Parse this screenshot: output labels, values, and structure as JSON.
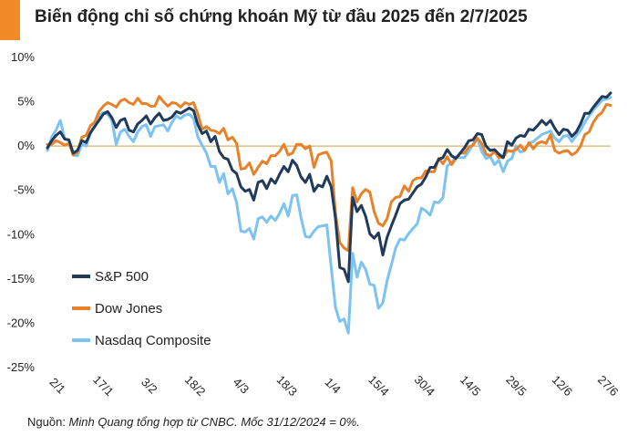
{
  "title": "Biến động chỉ số chứng khoán Mỹ từ đầu 2025 đến 2/7/2025",
  "source_prefix": "Nguồn: ",
  "source_text": "Minh Quang tổng hợp từ CNBC. Mốc 31/12/2024 = 0%.",
  "colors": {
    "accent": "#f08a24",
    "sp500": "#1f3a5a",
    "dow": "#e8822a",
    "nasdaq": "#7cc3f2"
  },
  "chart_data": {
    "type": "line",
    "title": "Biến động chỉ số chứng khoán Mỹ từ đầu 2025 đến 2/7/2025",
    "ylim": [
      -25,
      10
    ],
    "yticks": [
      10,
      5,
      0,
      -5,
      -10,
      -15,
      -20,
      -25
    ],
    "ytick_labels": [
      "10%",
      "5%",
      "0%",
      "-5%",
      "-10%",
      "-15%",
      "-20%",
      "-25%"
    ],
    "xticks": [
      "2/1",
      "17/1",
      "3/2",
      "18/2",
      "4/3",
      "18/3",
      "1/4",
      "15/4",
      "30/4",
      "14/5",
      "29/5",
      "12/6",
      "27/6"
    ],
    "grid": false,
    "legend": "bottom-left",
    "series": [
      {
        "name": "S&P 500",
        "values": [
          -0.2,
          0.6,
          1.2,
          1.6,
          0.8,
          0.7,
          -0.8,
          -0.5,
          0.6,
          0.4,
          1.5,
          2.2,
          2.9,
          3.6,
          3.9,
          3.2,
          2.1,
          2.9,
          3.1,
          1.8,
          1.6,
          2.5,
          2.9,
          3.4,
          2.5,
          3.2,
          3.7,
          2.9,
          3.0,
          3.3,
          3.9,
          3.7,
          4.0,
          4.3,
          4.0,
          2.4,
          1.4,
          1.7,
          0.5,
          1.1,
          -0.6,
          -1.3,
          -1.5,
          -2.7,
          -3.1,
          -4.6,
          -5.1,
          -4.9,
          -6.1,
          -4.1,
          -3.9,
          -4.8,
          -3.7,
          -4.2,
          -3.2,
          -2.3,
          -2.9,
          -1.6,
          -2.2,
          -3.5,
          -4.1,
          -3.2,
          -5.1,
          -4.4,
          -4.6,
          -3.4,
          -4.6,
          -8.2,
          -13.7,
          -13.9,
          -15.3,
          -5.8,
          -7.4,
          -6.7,
          -7.9,
          -9.9,
          -10.4,
          -9.8,
          -12.3,
          -10.3,
          -9.0,
          -7.8,
          -6.5,
          -6.1,
          -6.0,
          -5.3,
          -4.6,
          -4.3,
          -3.5,
          -2.4,
          -2.4,
          -1.5,
          -1.3,
          -0.4,
          -1.1,
          -1.4,
          -0.8,
          -0.2,
          0.6,
          0.7,
          1.4,
          1.3,
          0.0,
          -0.5,
          -0.4,
          -0.9,
          -1.3,
          0.5,
          0.1,
          0.9,
          1.2,
          1.1,
          1.9,
          1.8,
          2.3,
          2.9,
          2.4,
          2.9,
          2.0,
          1.3,
          1.9,
          1.8,
          1.1,
          1.6,
          2.5,
          3.7,
          3.7,
          4.4,
          5.0,
          5.6,
          5.5,
          6.0
        ]
      },
      {
        "name": "Dow Jones",
        "values": [
          0.2,
          0.2,
          0.6,
          0.4,
          0.1,
          0.3,
          -1.0,
          -0.7,
          1.0,
          1.2,
          2.3,
          2.7,
          3.9,
          4.5,
          4.9,
          4.7,
          4.4,
          5.1,
          5.3,
          4.9,
          4.7,
          5.4,
          4.8,
          4.8,
          4.5,
          4.5,
          5.6,
          5.0,
          4.5,
          4.9,
          4.8,
          4.4,
          4.9,
          4.7,
          4.9,
          3.6,
          1.9,
          2.2,
          1.8,
          1.7,
          1.4,
          2.0,
          0.7,
          1.0,
          0.3,
          -2.6,
          -2.5,
          -1.9,
          -3.2,
          -2.4,
          -1.7,
          -2.0,
          -1.1,
          -1.1,
          -0.6,
          0.2,
          -1.0,
          -0.8,
          0.2,
          0.2,
          -0.3,
          0.0,
          -2.4,
          -1.0,
          -0.8,
          -0.7,
          -1.7,
          -7.6,
          -10.9,
          -11.5,
          -11.8,
          -4.7,
          -6.3,
          -5.4,
          -4.9,
          -5.2,
          -7.4,
          -8.7,
          -9.0,
          -8.2,
          -6.3,
          -5.8,
          -5.7,
          -4.5,
          -5.1,
          -3.9,
          -3.6,
          -3.6,
          -2.8,
          -2.9,
          -2.9,
          -1.4,
          -2.0,
          -1.2,
          -2.1,
          -1.4,
          -0.8,
          -0.8,
          -0.1,
          0.1,
          0.9,
          0.3,
          -0.9,
          -1.1,
          -0.6,
          -1.3,
          -1.3,
          -0.5,
          -0.6,
          -0.4,
          0.1,
          -0.5,
          0.4,
          -0.3,
          0.3,
          0.5,
          0.3,
          1.3,
          -0.5,
          -0.8,
          -0.6,
          -0.5,
          -1.0,
          -0.7,
          0.0,
          1.3,
          1.6,
          2.7,
          3.4,
          3.8,
          4.7,
          4.6
        ]
      },
      {
        "name": "Nasdaq Composite",
        "values": [
          -0.5,
          1.0,
          1.8,
          2.9,
          0.9,
          0.6,
          -1.0,
          -1.1,
          0.2,
          0.0,
          1.5,
          2.4,
          3.4,
          3.8,
          3.6,
          2.9,
          0.2,
          1.6,
          1.9,
          1.1,
          0.5,
          1.6,
          2.2,
          2.4,
          1.1,
          2.2,
          2.3,
          2.4,
          1.7,
          2.7,
          3.4,
          3.1,
          3.5,
          3.6,
          3.1,
          1.0,
          0.1,
          -0.8,
          -2.3,
          -2.3,
          -4.1,
          -3.1,
          -5.4,
          -4.8,
          -6.4,
          -9.6,
          -9.7,
          -9.3,
          -10.5,
          -8.2,
          -8.0,
          -8.6,
          -7.9,
          -8.4,
          -7.6,
          -6.5,
          -7.9,
          -5.6,
          -5.5,
          -8.1,
          -10.2,
          -10.3,
          -9.6,
          -9.1,
          -9.0,
          -8.9,
          -13.7,
          -18.2,
          -19.8,
          -19.5,
          -21.1,
          -12.1,
          -14.8,
          -13.1,
          -13.9,
          -15.6,
          -15.7,
          -18.3,
          -17.7,
          -15.2,
          -13.4,
          -11.5,
          -10.5,
          -10.6,
          -9.9,
          -9.3,
          -8.8,
          -7.0,
          -7.3,
          -7.8,
          -6.3,
          -6.4,
          -5.8,
          -2.2,
          -1.9,
          -1.2,
          -1.3,
          -1.3,
          -0.6,
          0.2,
          0.9,
          -0.6,
          -1.4,
          -1.2,
          -2.1,
          -1.6,
          -2.9,
          -1.7,
          -1.4,
          0.0,
          -0.7,
          -0.5,
          0.3,
          0.5,
          0.9,
          1.3,
          1.5,
          1.7,
          0.9,
          0.5,
          1.1,
          1.2,
          0.5,
          1.2,
          1.8,
          2.7,
          3.4,
          4.1,
          4.6,
          5.2,
          5.3,
          5.5
        ]
      }
    ]
  }
}
